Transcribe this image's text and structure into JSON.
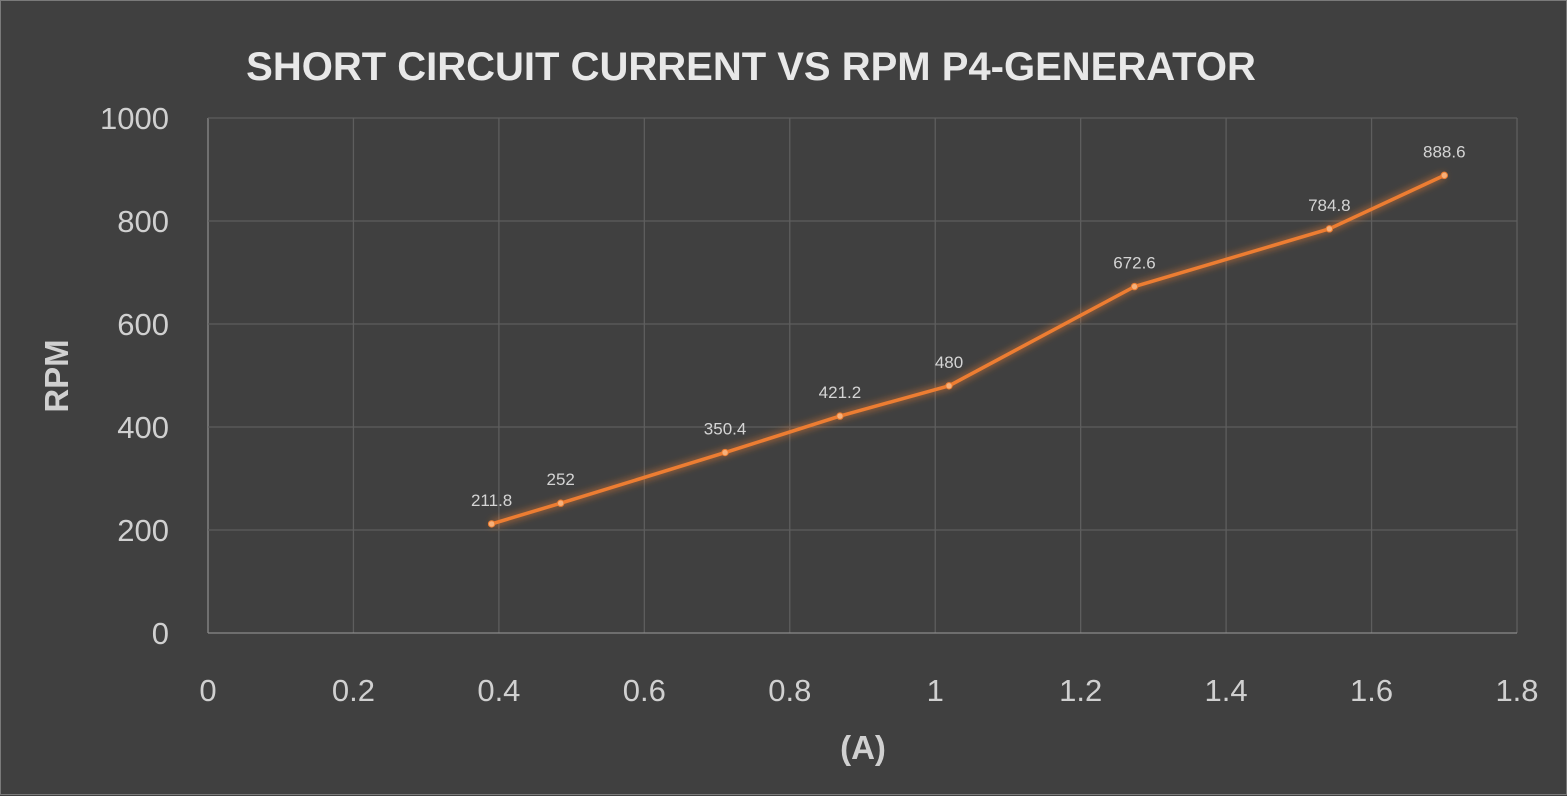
{
  "chart_data": {
    "type": "line",
    "title": "SHORT CIRCUIT CURRENT VS RPM P4-GENERATOR",
    "xlabel": "(A)",
    "ylabel": "RPM",
    "xlim": [
      0,
      1.8
    ],
    "ylim": [
      0,
      1000
    ],
    "xticks": [
      "0",
      "0.2",
      "0.4",
      "0.6",
      "0.8",
      "1",
      "1.2",
      "1.4",
      "1.6",
      "1.8"
    ],
    "yticks": [
      "0",
      "200",
      "400",
      "600",
      "800",
      "1000"
    ],
    "grid": true,
    "series": [
      {
        "name": "RPM",
        "color": "#ed7d31",
        "x": [
          0.39,
          0.485,
          0.711,
          0.869,
          1.019,
          1.274,
          1.542,
          1.7
        ],
        "y": [
          211.8,
          252,
          350.4,
          421.2,
          480,
          672.6,
          784.8,
          888.6
        ],
        "labels": [
          "211.8",
          "252",
          "350.4",
          "421.2",
          "480",
          "672.6",
          "784.8",
          "888.6"
        ]
      }
    ]
  }
}
